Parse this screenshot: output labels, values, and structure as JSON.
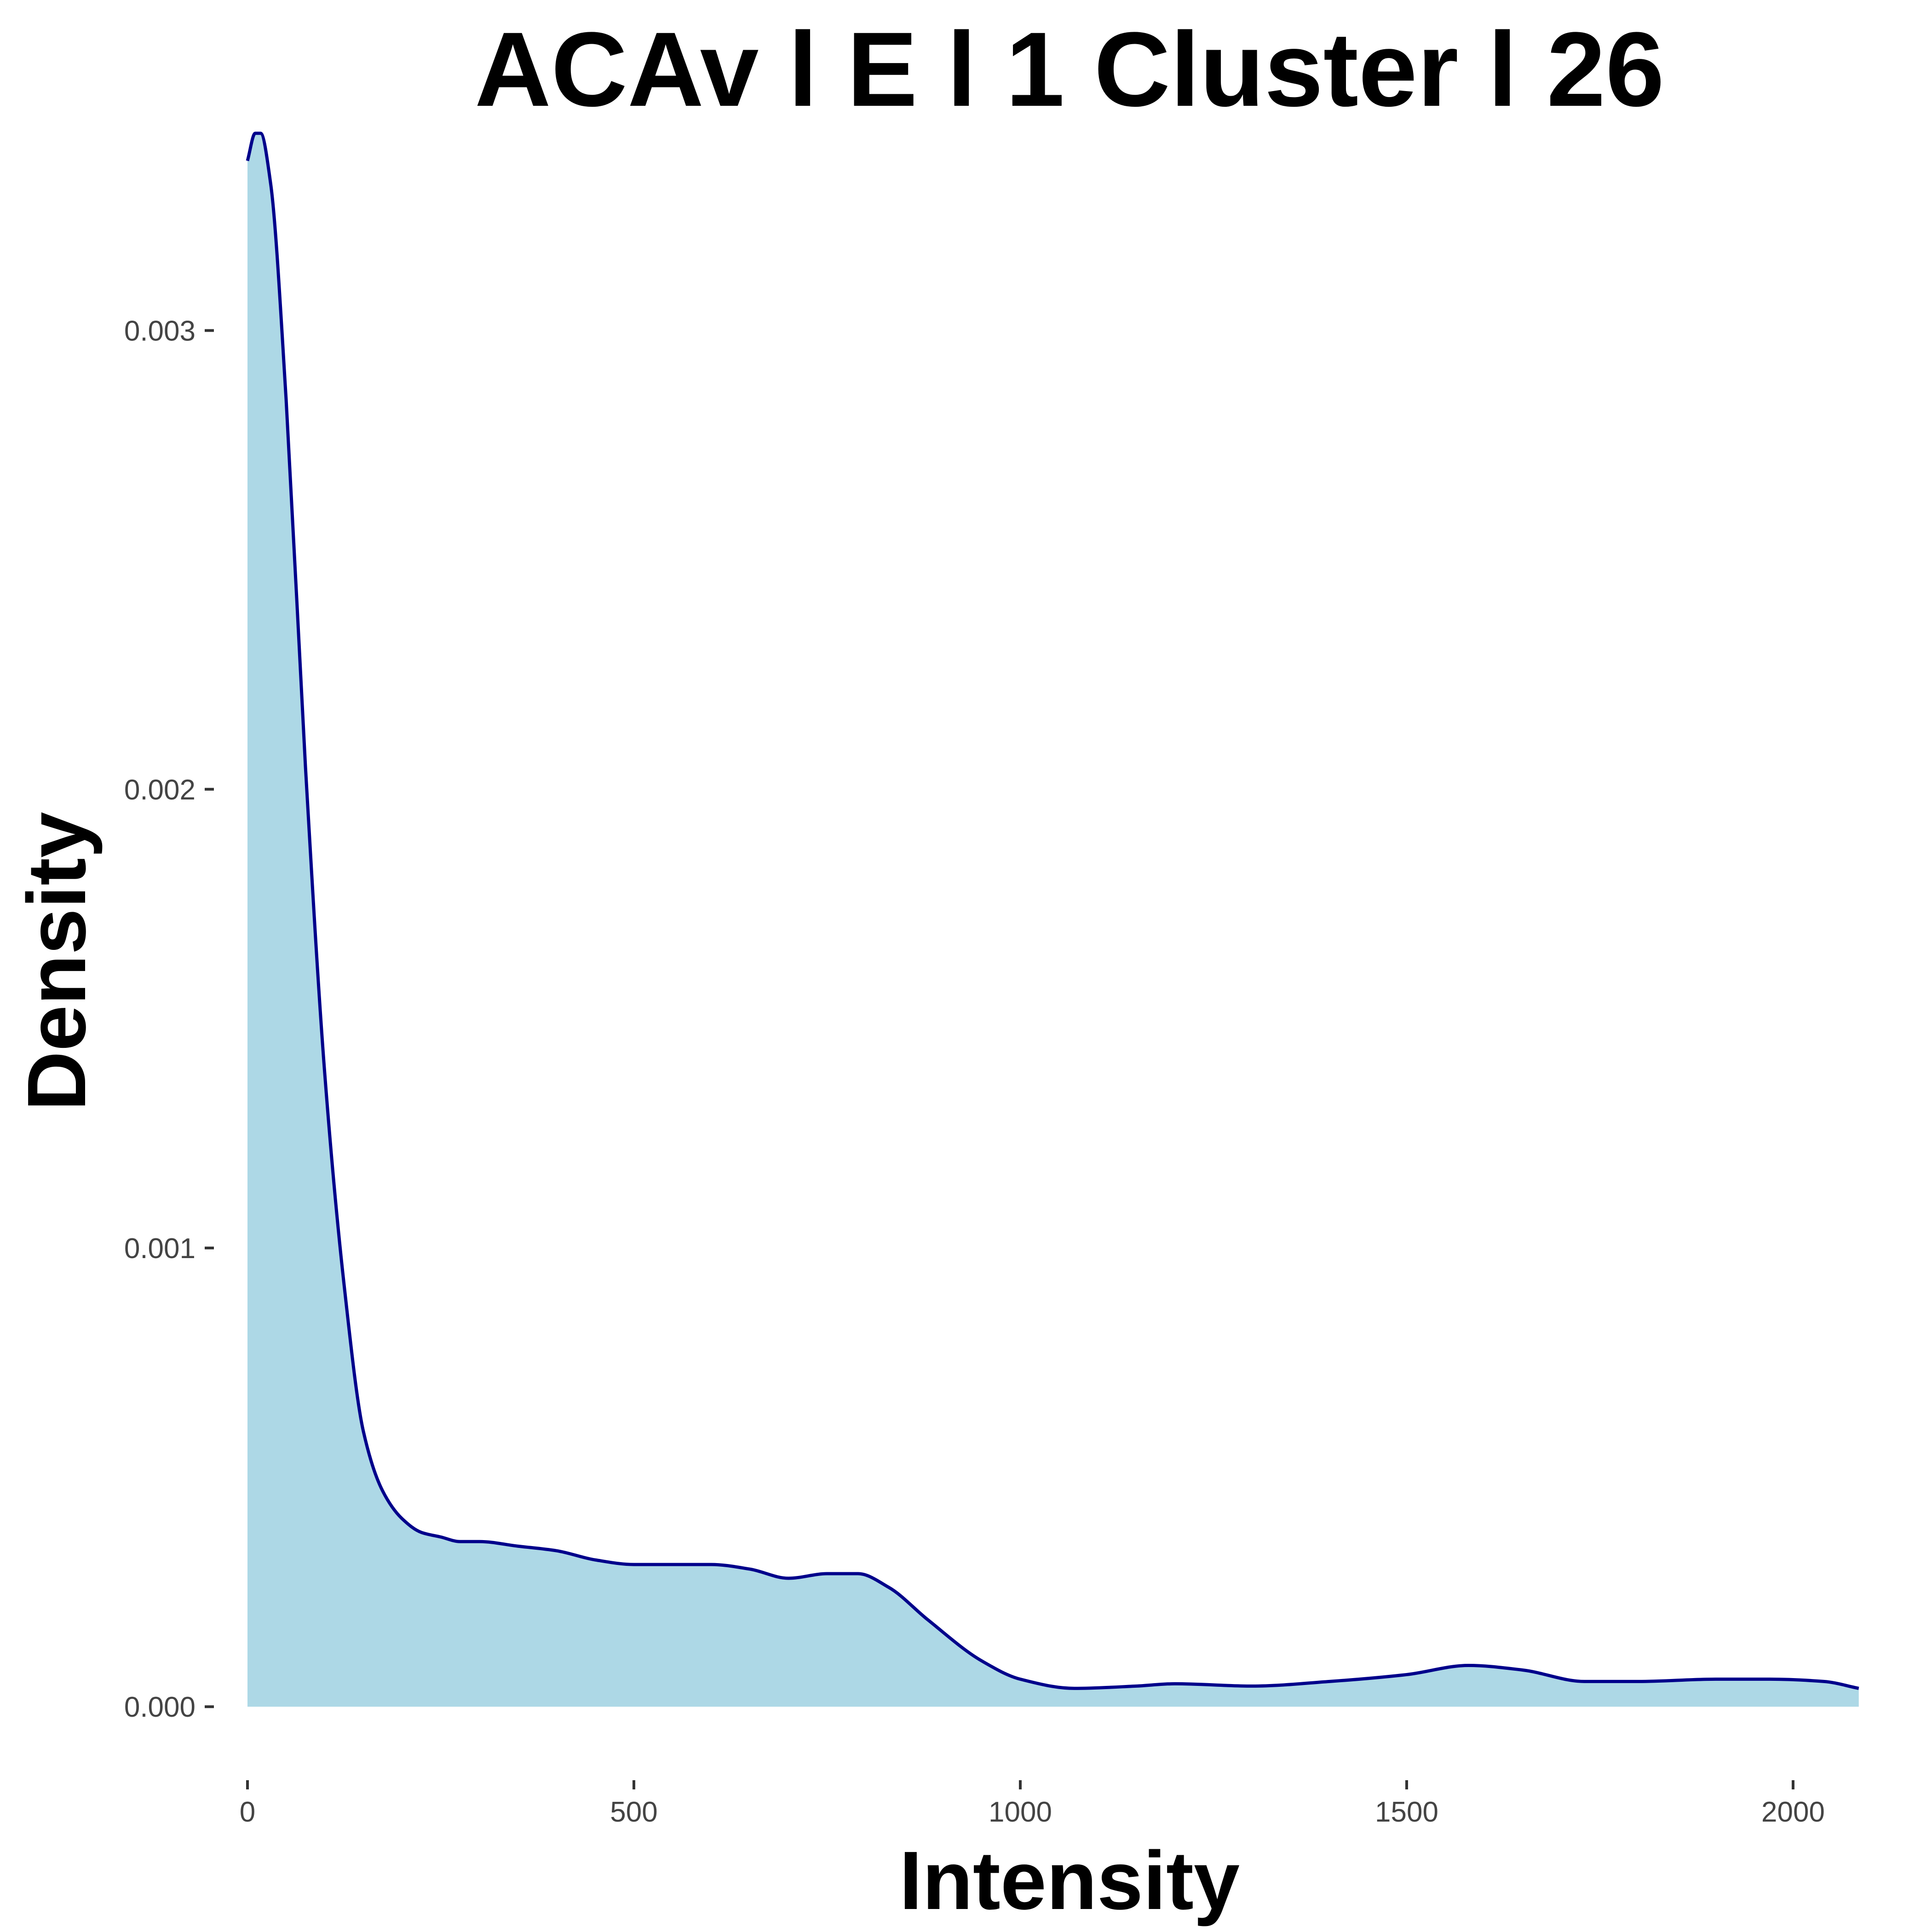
{
  "chart_data": {
    "type": "area",
    "title": "ACAv l E l 1 Cluster l  26",
    "xlabel": "Intensity",
    "ylabel": "Density",
    "xlim": [
      -100,
      2150
    ],
    "ylim": [
      -9e-05,
      0.00352
    ],
    "x_ticks": [
      0,
      500,
      1000,
      1500,
      2000
    ],
    "x_tick_labels": [
      "0",
      "500",
      "1000",
      "1500",
      "2000"
    ],
    "y_ticks": [
      0.0,
      0.001,
      0.002,
      0.003
    ],
    "y_tick_labels": [
      "0.000",
      "0.001",
      "0.002",
      "0.003"
    ],
    "grid": false,
    "legend": "none",
    "fill_color": "#add8e6",
    "line_color": "#00008b",
    "series": [
      {
        "x": [
          0,
          10,
          17,
          30,
          50,
          75,
          100,
          125,
          150,
          175,
          200,
          225,
          250,
          275,
          300,
          350,
          400,
          450,
          500,
          550,
          600,
          650,
          700,
          750,
          790,
          830,
          880,
          950,
          1000,
          1070,
          1150,
          1200,
          1300,
          1400,
          1500,
          1580,
          1650,
          1730,
          1800,
          1900,
          1970,
          2040,
          2085
        ],
        "y": [
          0.00337,
          0.00343,
          0.00343,
          0.00332,
          0.00285,
          0.00205,
          0.00138,
          0.00092,
          0.0006,
          0.00047,
          0.00041,
          0.00038,
          0.00037,
          0.00036,
          0.00036,
          0.00035,
          0.00034,
          0.00032,
          0.00031,
          0.00031,
          0.00031,
          0.0003,
          0.00028,
          0.00029,
          0.00029,
          0.00026,
          0.00019,
          0.0001,
          6e-05,
          4e-05,
          4.5e-05,
          5e-05,
          4.5e-05,
          5.5e-05,
          7e-05,
          9e-05,
          8e-05,
          5.5e-05,
          5.5e-05,
          6e-05,
          6e-05,
          5.5e-05,
          4e-05
        ]
      }
    ]
  }
}
